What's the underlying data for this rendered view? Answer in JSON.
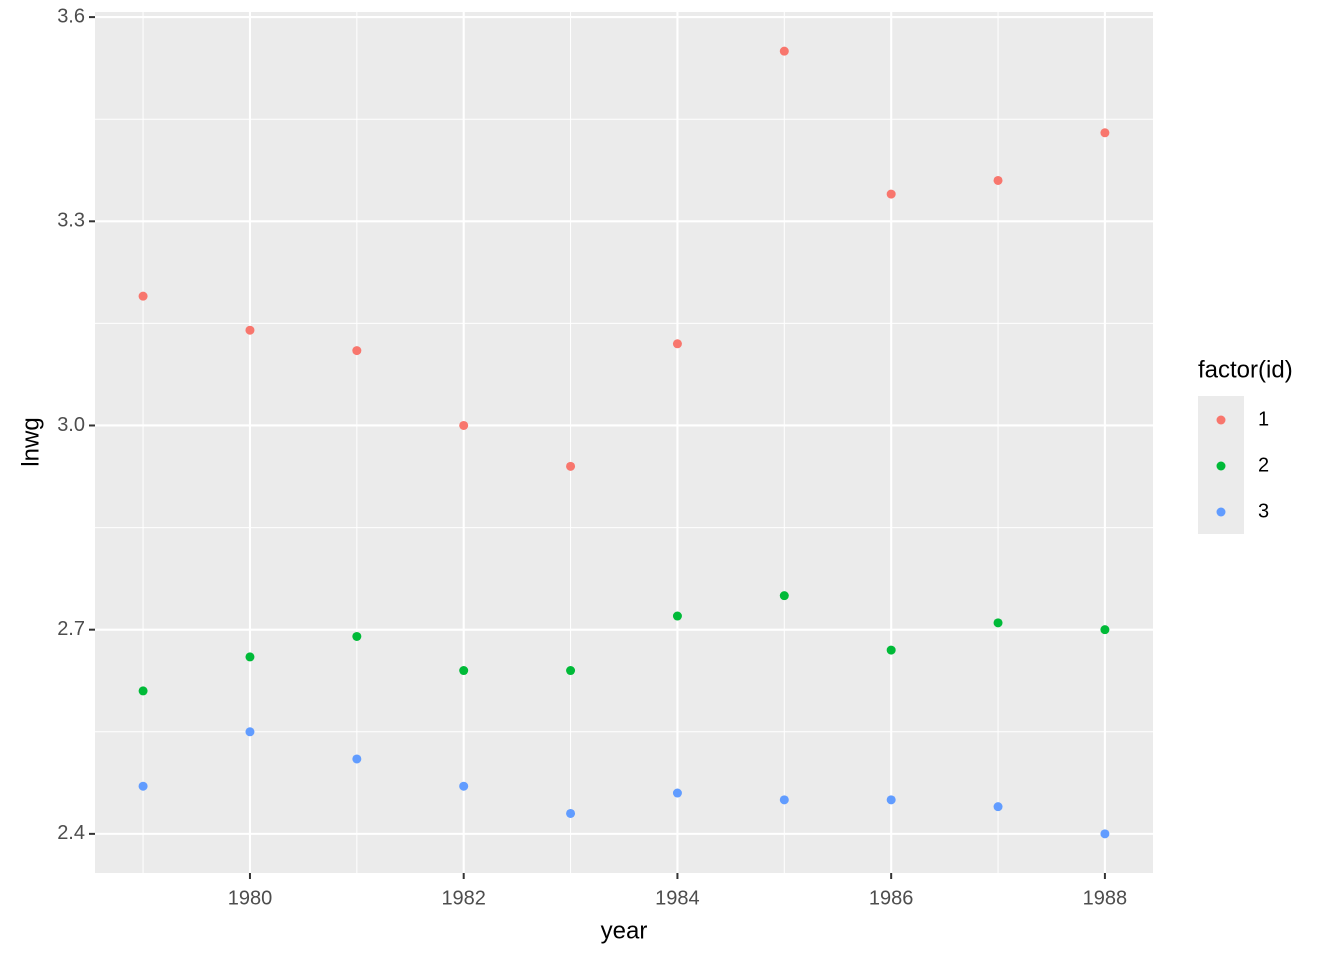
{
  "chart_data": {
    "type": "scatter",
    "x_label": "year",
    "y_label": "lnwg",
    "legend_title": "factor(id)",
    "legend_position": "right",
    "x": [
      1979,
      1980,
      1981,
      1982,
      1983,
      1984,
      1985,
      1986,
      1987,
      1988
    ],
    "series": [
      {
        "name": "1",
        "color": "#F8766D",
        "values": [
          3.19,
          3.14,
          3.11,
          3.0,
          2.94,
          3.12,
          3.55,
          3.34,
          3.36,
          3.43
        ]
      },
      {
        "name": "2",
        "color": "#00BA38",
        "values": [
          2.61,
          2.66,
          2.69,
          2.64,
          2.64,
          2.72,
          2.75,
          2.67,
          2.71,
          2.7
        ]
      },
      {
        "name": "3",
        "color": "#619CFF",
        "values": [
          2.47,
          2.55,
          2.51,
          2.47,
          2.43,
          2.46,
          2.45,
          2.45,
          2.44,
          2.4
        ]
      }
    ],
    "xlim": [
      1978.55,
      1988.45
    ],
    "xticks": [
      1980,
      1982,
      1984,
      1986,
      1988
    ],
    "ylim": [
      2.3425,
      3.6075
    ],
    "yticks": [
      2.4,
      2.7,
      {
        "value": 3,
        "label": "3.0"
      },
      3.3,
      3.6
    ],
    "grid": true
  }
}
